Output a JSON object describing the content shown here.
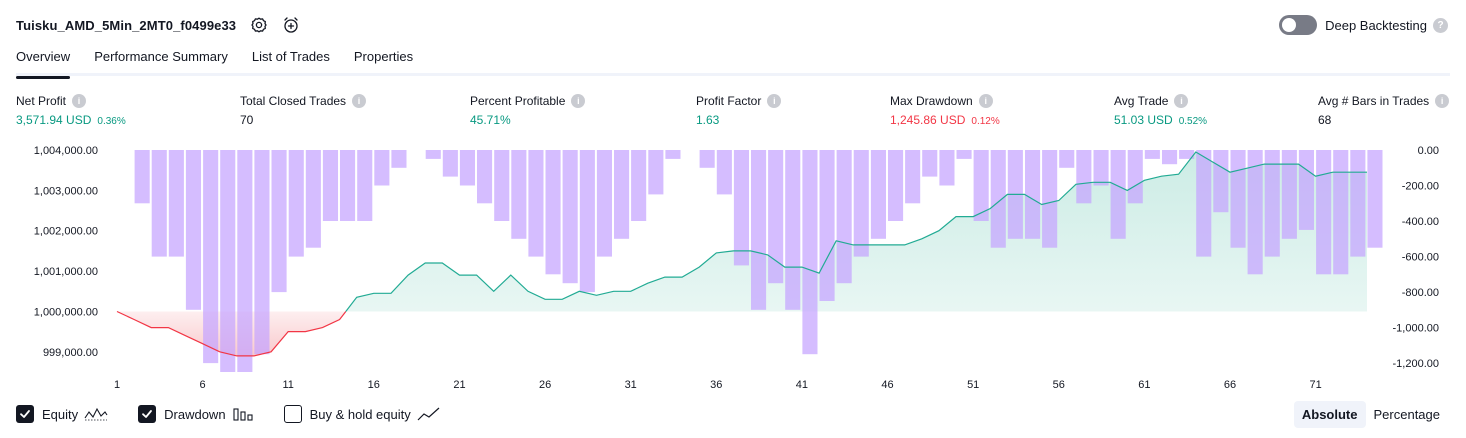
{
  "header": {
    "strategy_name": "Tuisku_AMD_5Min_2MT0_f0499e33",
    "settings_icon": "gear-icon",
    "alert_icon": "alarm-add-icon"
  },
  "deep_backtesting": {
    "label": "Deep Backtesting",
    "enabled": false,
    "help": "?"
  },
  "tabs": [
    {
      "label": "Overview",
      "active": true
    },
    {
      "label": "Performance Summary",
      "active": false
    },
    {
      "label": "List of Trades",
      "active": false
    },
    {
      "label": "Properties",
      "active": false
    }
  ],
  "stats": [
    {
      "label": "Net Profit",
      "value": "3,571.94 USD",
      "pct": "0.36%",
      "tone": "pos"
    },
    {
      "label": "Total Closed Trades",
      "value": "70",
      "pct": "",
      "tone": "neutral"
    },
    {
      "label": "Percent Profitable",
      "value": "45.71%",
      "pct": "",
      "tone": "pos"
    },
    {
      "label": "Profit Factor",
      "value": "1.63",
      "pct": "",
      "tone": "pos"
    },
    {
      "label": "Max Drawdown",
      "value": "1,245.86 USD",
      "pct": "0.12%",
      "tone": "neg"
    },
    {
      "label": "Avg Trade",
      "value": "51.03 USD",
      "pct": "0.52%",
      "tone": "pos"
    },
    {
      "label": "Avg # Bars in Trades",
      "value": "68",
      "pct": "",
      "tone": "neutral"
    }
  ],
  "chart_data": {
    "type": "line",
    "x_ticks": [
      "1",
      "6",
      "11",
      "16",
      "21",
      "26",
      "31",
      "36",
      "41",
      "46",
      "51",
      "56",
      "61",
      "66",
      "71"
    ],
    "left_ticks": [
      "1,004,000.00",
      "1,003,000.00",
      "1,002,000.00",
      "1,001,000.00",
      "1,000,000.00",
      "999,000.00"
    ],
    "right_ticks": [
      "0.00",
      "-200.00",
      "-400.00",
      "-600.00",
      "-800.00",
      "-1,000.00",
      "-1,200.00"
    ],
    "left_range": [
      998500,
      1004000
    ],
    "right_range": [
      -1250,
      0
    ],
    "baseline": 1000000,
    "series": [
      {
        "name": "Equity",
        "values": [
          1000000,
          999800,
          999600,
          999600,
          999400,
          999200,
          999000,
          998900,
          998900,
          999000,
          999500,
          999500,
          999600,
          999800,
          1000350,
          1000450,
          1000450,
          1000900,
          1001200,
          1001200,
          1000900,
          1000900,
          1000500,
          1000900,
          1000500,
          1000300,
          1000300,
          1000500,
          1000400,
          1000500,
          1000500,
          1000700,
          1000850,
          1000850,
          1001100,
          1001450,
          1001500,
          1001500,
          1001400,
          1001100,
          1001100,
          1000950,
          1001750,
          1001650,
          1001650,
          1001650,
          1001650,
          1001800,
          1002000,
          1002350,
          1002350,
          1002550,
          1002900,
          1002900,
          1002650,
          1002750,
          1003150,
          1003200,
          1003200,
          1003000,
          1003250,
          1003350,
          1003400,
          1003950,
          1003700,
          1003450,
          1003550,
          1003650,
          1003650,
          1003650,
          1003350,
          1003450,
          1003450,
          1003450
        ]
      },
      {
        "name": "Drawdown",
        "values": [
          0,
          -300,
          -600,
          -600,
          -900,
          -1200,
          -1250,
          -1250,
          -1150,
          -800,
          -600,
          -550,
          -400,
          -400,
          -400,
          -200,
          -100,
          0,
          -50,
          -150,
          -200,
          -300,
          -400,
          -500,
          -600,
          -700,
          -750,
          -800,
          -600,
          -500,
          -400,
          -250,
          -50,
          0,
          -100,
          -250,
          -650,
          -900,
          -750,
          -900,
          -1150,
          -850,
          -750,
          -600,
          -500,
          -400,
          -300,
          -150,
          -200,
          -50,
          -400,
          -550,
          -500,
          -500,
          -550,
          -100,
          -300,
          -200,
          -500,
          -300,
          -50,
          -80,
          -50,
          -600,
          -350,
          -550,
          -700,
          -600,
          -500,
          -450,
          -700,
          -700,
          -600,
          -550
        ]
      }
    ],
    "legend": [
      {
        "label": "Equity",
        "checked": true,
        "icon": "line-wave-icon"
      },
      {
        "label": "Drawdown",
        "checked": true,
        "icon": "bar-chart-icon"
      },
      {
        "label": "Buy & hold equity",
        "checked": false,
        "icon": "line-chart-icon"
      }
    ],
    "colors": {
      "equity_up": "#22ab94",
      "equity_down": "#f23645",
      "equity_fill_up": "#ccece5",
      "equity_fill_down": "#f9c9cc",
      "drawdown_bar": "#c5a3ff"
    }
  },
  "modes": [
    {
      "label": "Absolute",
      "active": true
    },
    {
      "label": "Percentage",
      "active": false
    }
  ]
}
